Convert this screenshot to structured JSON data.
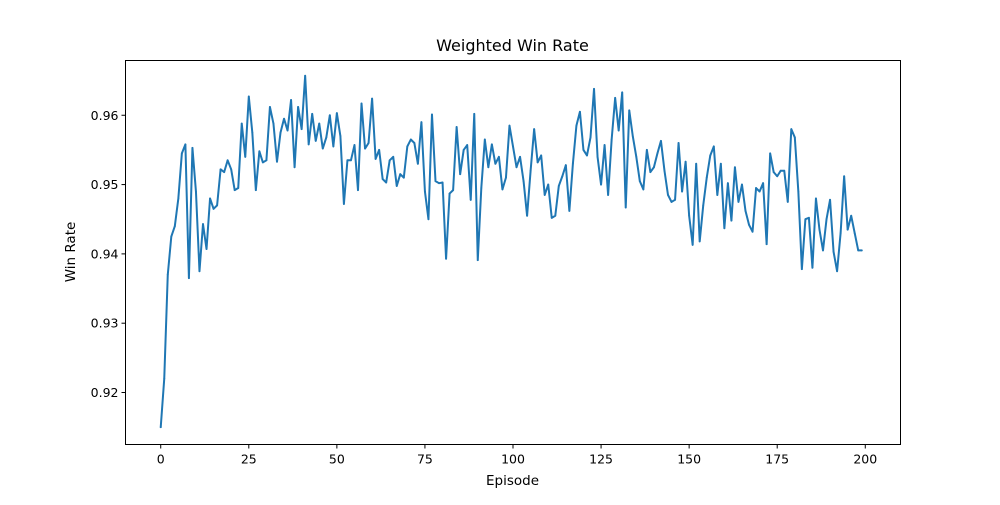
{
  "chart_data": {
    "type": "line",
    "title": "Weighted Win Rate",
    "xlabel": "Episode",
    "ylabel": "Win Rate",
    "xlim": [
      -10,
      210
    ],
    "ylim": [
      0.9125,
      0.9679
    ],
    "xticks": [
      0,
      25,
      50,
      75,
      100,
      125,
      150,
      175,
      200
    ],
    "yticks": [
      0.92,
      0.93,
      0.94,
      0.95,
      0.96
    ],
    "xtick_labels": [
      "0",
      "25",
      "50",
      "75",
      "100",
      "125",
      "150",
      "175",
      "200"
    ],
    "ytick_labels": [
      "0.92",
      "0.93",
      "0.94",
      "0.95",
      "0.96"
    ],
    "grid": false,
    "series": [
      {
        "name": "Weighted Win Rate",
        "color": "#1f77b4",
        "x_start": 0,
        "x_step": 1,
        "values": [
          0.915,
          0.922,
          0.937,
          0.9425,
          0.944,
          0.948,
          0.9545,
          0.9558,
          0.9365,
          0.9553,
          0.949,
          0.9375,
          0.9443,
          0.9407,
          0.948,
          0.9465,
          0.947,
          0.9522,
          0.9518,
          0.9535,
          0.9522,
          0.9492,
          0.9495,
          0.9588,
          0.954,
          0.9627,
          0.9575,
          0.9492,
          0.9548,
          0.9532,
          0.9535,
          0.9612,
          0.9588,
          0.9533,
          0.9575,
          0.9595,
          0.9578,
          0.9622,
          0.9525,
          0.9612,
          0.958,
          0.9657,
          0.9558,
          0.9602,
          0.9563,
          0.9588,
          0.9552,
          0.9568,
          0.96,
          0.9555,
          0.9603,
          0.957,
          0.9472,
          0.9535,
          0.9535,
          0.9557,
          0.9492,
          0.9617,
          0.9552,
          0.956,
          0.9624,
          0.9537,
          0.955,
          0.9508,
          0.9503,
          0.9535,
          0.954,
          0.9498,
          0.9515,
          0.951,
          0.9555,
          0.9565,
          0.956,
          0.953,
          0.959,
          0.949,
          0.945,
          0.9601,
          0.9505,
          0.9502,
          0.9503,
          0.9393,
          0.9487,
          0.9492,
          0.9583,
          0.9515,
          0.955,
          0.9557,
          0.9478,
          0.9602,
          0.9391,
          0.9495,
          0.9565,
          0.9525,
          0.9558,
          0.953,
          0.954,
          0.9493,
          0.951,
          0.9585,
          0.9555,
          0.9525,
          0.954,
          0.9505,
          0.9455,
          0.952,
          0.958,
          0.9532,
          0.9542,
          0.9485,
          0.95,
          0.9452,
          0.9455,
          0.9498,
          0.9512,
          0.9528,
          0.9462,
          0.953,
          0.9585,
          0.9605,
          0.955,
          0.9542,
          0.9568,
          0.9638,
          0.954,
          0.95,
          0.9557,
          0.9485,
          0.9565,
          0.9625,
          0.9578,
          0.9633,
          0.9467,
          0.9607,
          0.957,
          0.954,
          0.9505,
          0.9493,
          0.955,
          0.9518,
          0.9525,
          0.9545,
          0.9563,
          0.952,
          0.9485,
          0.9475,
          0.9478,
          0.956,
          0.949,
          0.9533,
          0.9455,
          0.9413,
          0.953,
          0.9418,
          0.947,
          0.951,
          0.9542,
          0.9555,
          0.9485,
          0.953,
          0.9437,
          0.9502,
          0.9448,
          0.9525,
          0.9475,
          0.95,
          0.9462,
          0.9442,
          0.9432,
          0.9495,
          0.949,
          0.9502,
          0.9414,
          0.9545,
          0.9518,
          0.9512,
          0.952,
          0.952,
          0.9475,
          0.958,
          0.9568,
          0.949,
          0.9378,
          0.945,
          0.9452,
          0.938,
          0.948,
          0.9435,
          0.9405,
          0.945,
          0.9478,
          0.9403,
          0.9375,
          0.943,
          0.9512,
          0.9435,
          0.9455,
          0.943,
          0.9405,
          0.9405
        ]
      }
    ]
  }
}
